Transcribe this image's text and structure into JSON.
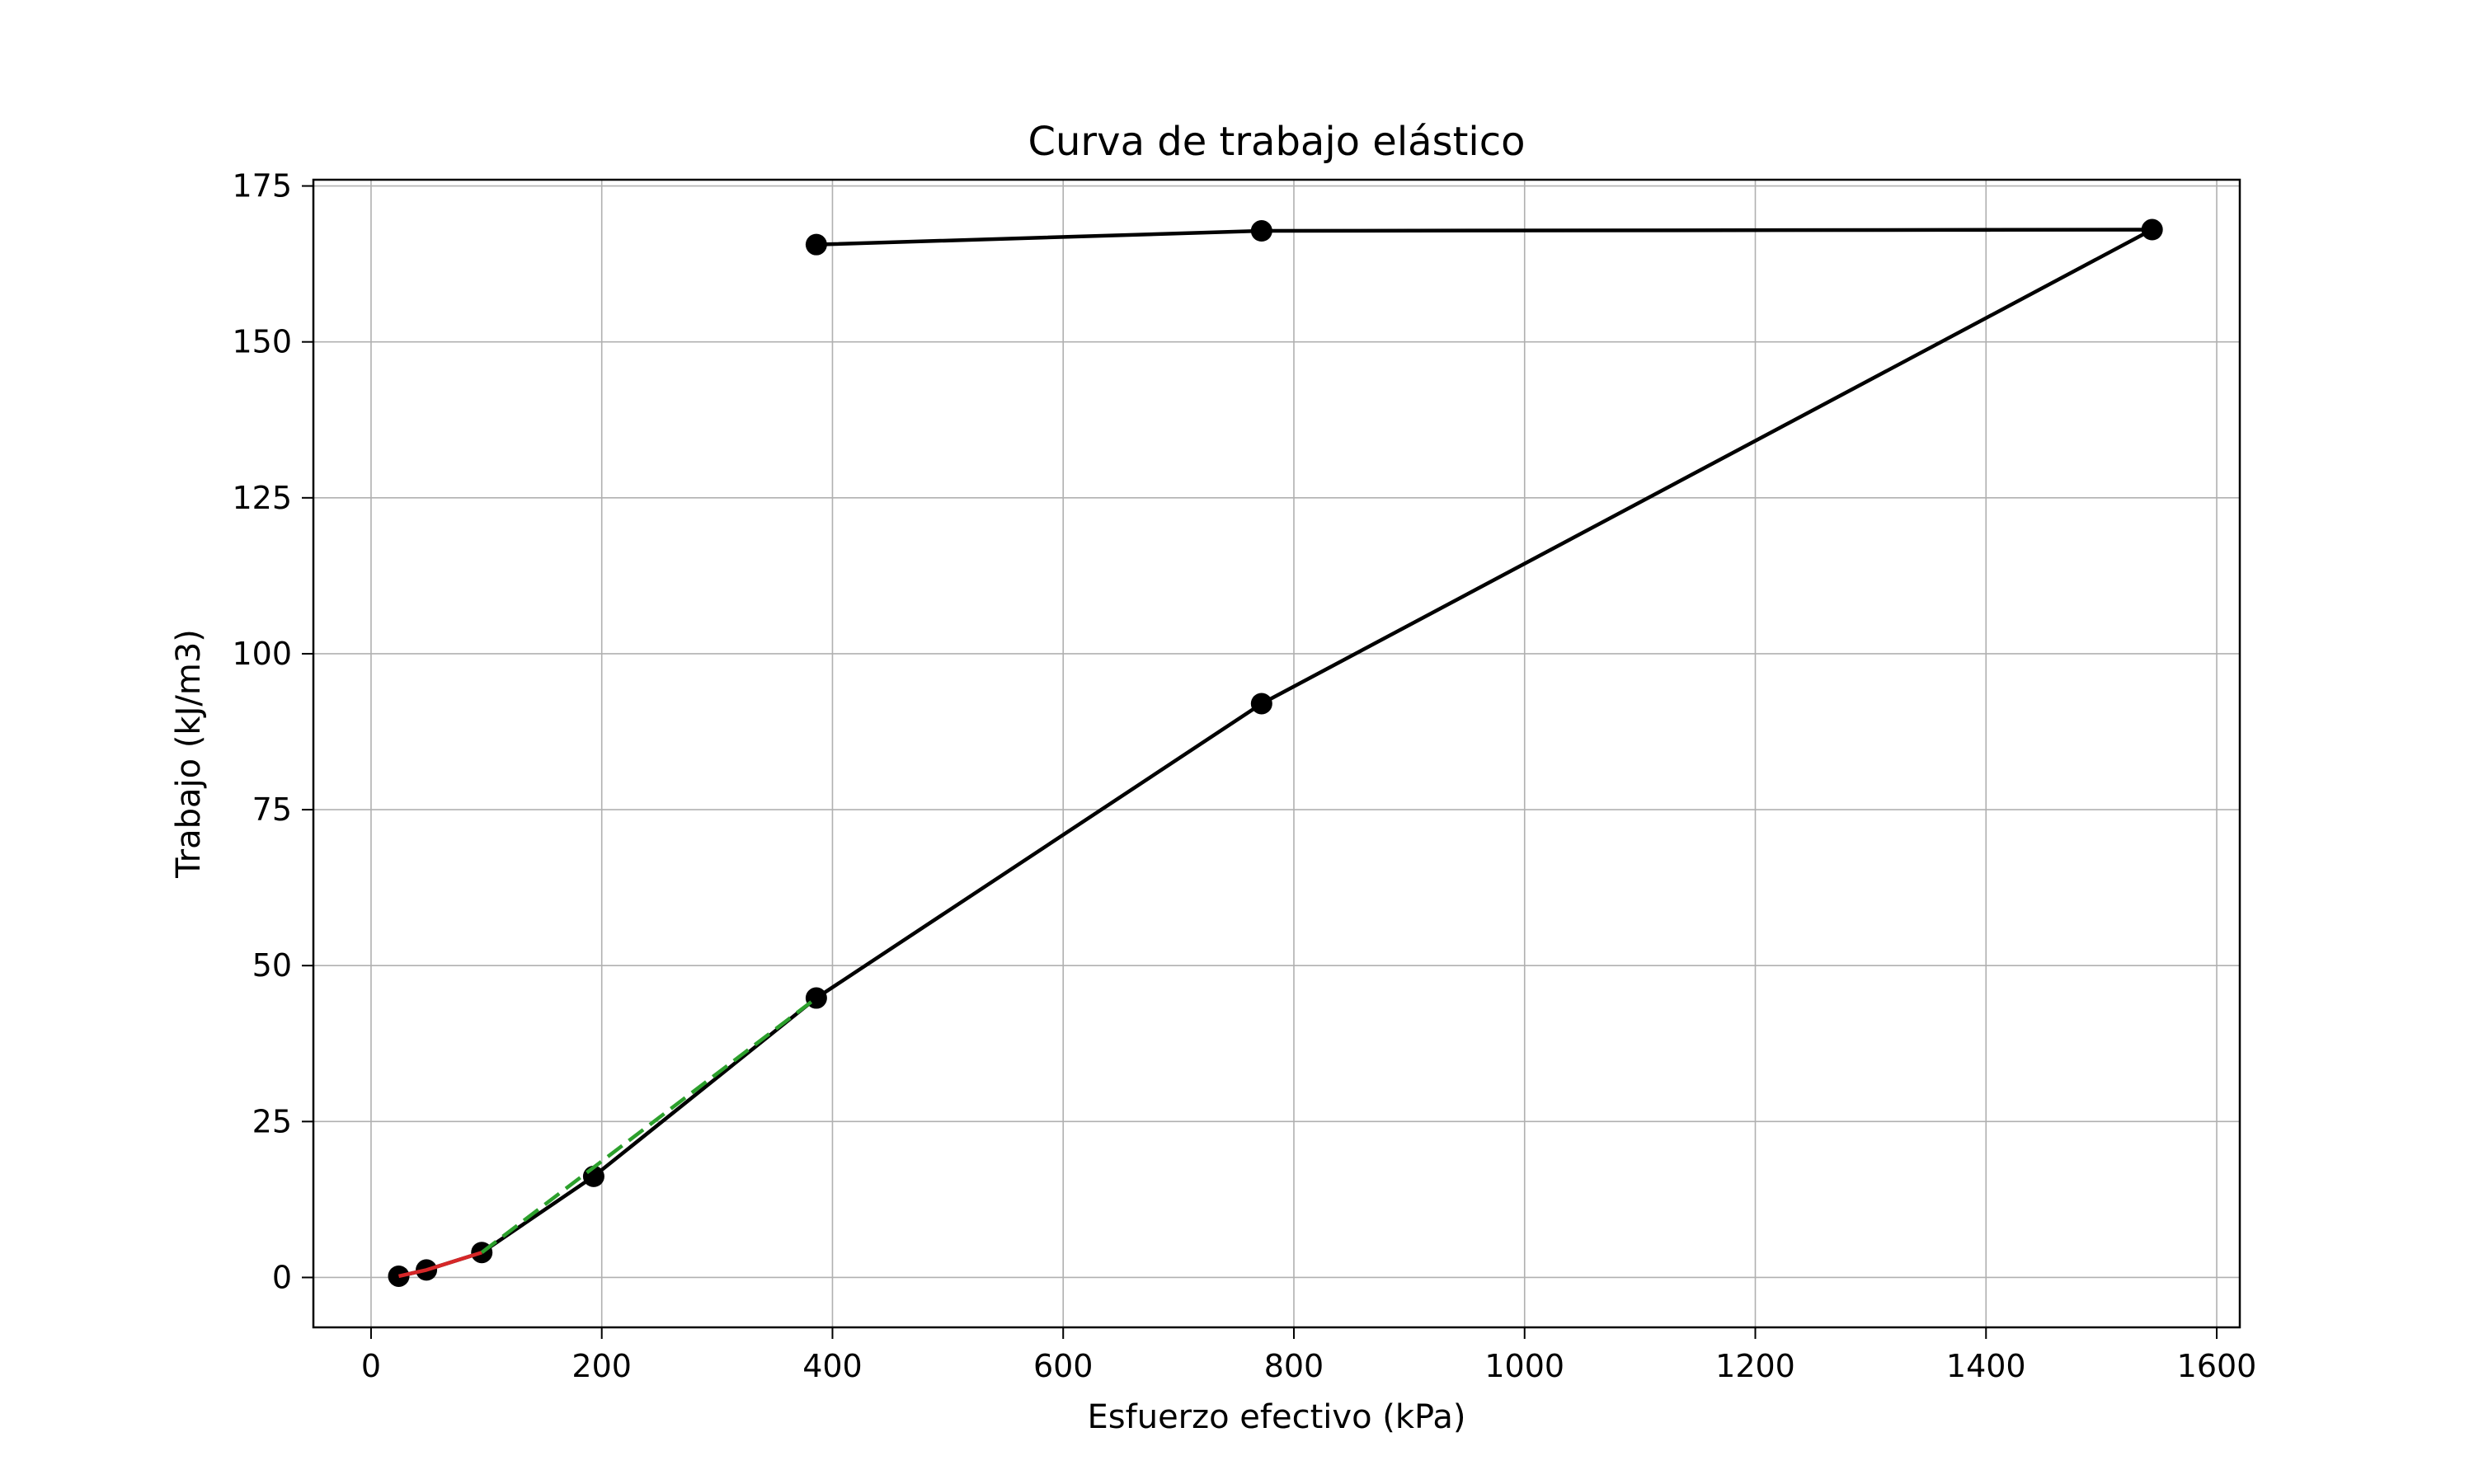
{
  "chart_data": {
    "type": "line",
    "title": "Curva de trabajo elástico",
    "xlabel": "Esfuerzo efectivo (kPa)",
    "ylabel": "Trabajo (kJ/m3)",
    "xlim": [
      -50,
      1620
    ],
    "ylim": [
      -8,
      176
    ],
    "x_ticks": [
      0,
      200,
      400,
      600,
      800,
      1000,
      1200,
      1400,
      1600
    ],
    "y_ticks": [
      0,
      25,
      50,
      75,
      100,
      125,
      150,
      175
    ],
    "grid": true,
    "series": [
      {
        "style": "solid-markers",
        "color": "#000000",
        "x": [
          24,
          48,
          96,
          193,
          386,
          772,
          1544,
          772,
          386
        ],
        "y": [
          0.2,
          1.2,
          4.0,
          16.2,
          44.8,
          92.0,
          168.0,
          167.8,
          165.6
        ]
      },
      {
        "style": "solid",
        "color": "#d62728",
        "x": [
          24,
          48,
          96
        ],
        "y": [
          0.2,
          1.2,
          4.0
        ]
      },
      {
        "style": "dashed",
        "color": "#2ca02c",
        "x": [
          96,
          386
        ],
        "y": [
          4.0,
          44.8
        ]
      }
    ]
  }
}
